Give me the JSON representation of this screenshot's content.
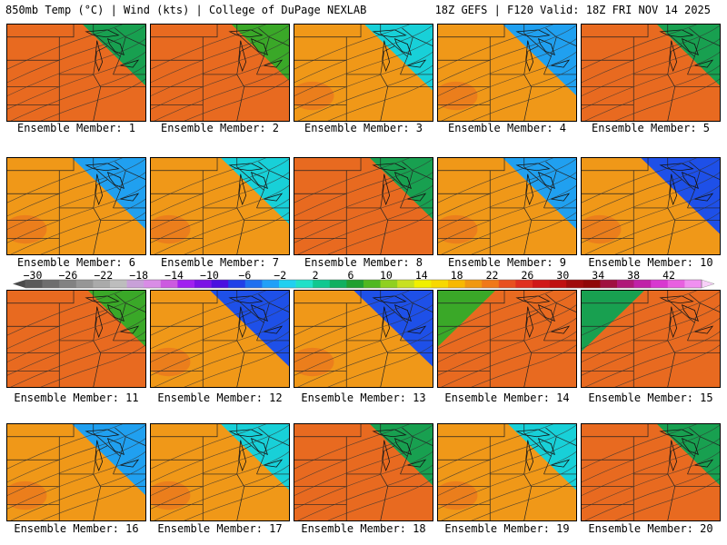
{
  "header": {
    "left": "850mb Temp (°C) | Wind (kts) | College of DuPage NEXLAB",
    "right": "18Z GEFS | F120 Valid: 18Z FRI NOV 14 2025"
  },
  "panels": [
    {
      "label": "Ensemble Member: 1",
      "cold_corner": "top-right",
      "cold_level": 1
    },
    {
      "label": "Ensemble Member: 2",
      "cold_corner": "top-right",
      "cold_level": 0
    },
    {
      "label": "Ensemble Member: 3",
      "cold_corner": "top-right",
      "cold_level": 2
    },
    {
      "label": "Ensemble Member: 4",
      "cold_corner": "top-right",
      "cold_level": 3
    },
    {
      "label": "Ensemble Member: 5",
      "cold_corner": "top-right",
      "cold_level": 1
    },
    {
      "label": "Ensemble Member: 6",
      "cold_corner": "top-right",
      "cold_level": 3
    },
    {
      "label": "Ensemble Member: 7",
      "cold_corner": "top-right",
      "cold_level": 2
    },
    {
      "label": "Ensemble Member: 8",
      "cold_corner": "top-right",
      "cold_level": 1
    },
    {
      "label": "Ensemble Member: 9",
      "cold_corner": "top-right",
      "cold_level": 3
    },
    {
      "label": "Ensemble Member: 10",
      "cold_corner": "top-right",
      "cold_level": 4
    },
    {
      "label": "Ensemble Member: 11",
      "cold_corner": "top-right",
      "cold_level": 0
    },
    {
      "label": "Ensemble Member: 12",
      "cold_corner": "top-right",
      "cold_level": 4
    },
    {
      "label": "Ensemble Member: 13",
      "cold_corner": "top-right",
      "cold_level": 4
    },
    {
      "label": "Ensemble Member: 14",
      "cold_corner": "top-left",
      "cold_level": 0
    },
    {
      "label": "Ensemble Member: 15",
      "cold_corner": "top-left",
      "cold_level": 1
    },
    {
      "label": "Ensemble Member: 16",
      "cold_corner": "top-right",
      "cold_level": 3
    },
    {
      "label": "Ensemble Member: 17",
      "cold_corner": "top-right",
      "cold_level": 2
    },
    {
      "label": "Ensemble Member: 18",
      "cold_corner": "top-right",
      "cold_level": 1
    },
    {
      "label": "Ensemble Member: 19",
      "cold_corner": "top-right",
      "cold_level": 2
    },
    {
      "label": "Ensemble Member: 20",
      "cold_corner": "top-right",
      "cold_level": 1
    }
  ],
  "colorbar": {
    "labels": [
      "−30",
      "−26",
      "−22",
      "−18",
      "−14",
      "−10",
      "−6",
      "−2",
      "2",
      "6",
      "10",
      "14",
      "18",
      "22",
      "26",
      "30",
      "34",
      "38",
      "42"
    ],
    "colors": [
      "#5a5a5a",
      "#6e6e6e",
      "#828282",
      "#969696",
      "#aaaaaa",
      "#bdbdbd",
      "#c8a0d8",
      "#d98ce6",
      "#cc5ae0",
      "#a020f0",
      "#7a12e6",
      "#4a10e0",
      "#2040e8",
      "#1e70f0",
      "#20a0f8",
      "#20d0f0",
      "#20e0c8",
      "#10c890",
      "#10b060",
      "#20a030",
      "#50b820",
      "#90d020",
      "#c8e020",
      "#f0f000",
      "#f8d800",
      "#f8b800",
      "#f09810",
      "#f07818",
      "#e85020",
      "#e03020",
      "#d01818",
      "#c01010",
      "#a00c0c",
      "#900808",
      "#a01040",
      "#b01878",
      "#c020a8",
      "#d838d0",
      "#e860e0",
      "#f090f0"
    ]
  }
}
